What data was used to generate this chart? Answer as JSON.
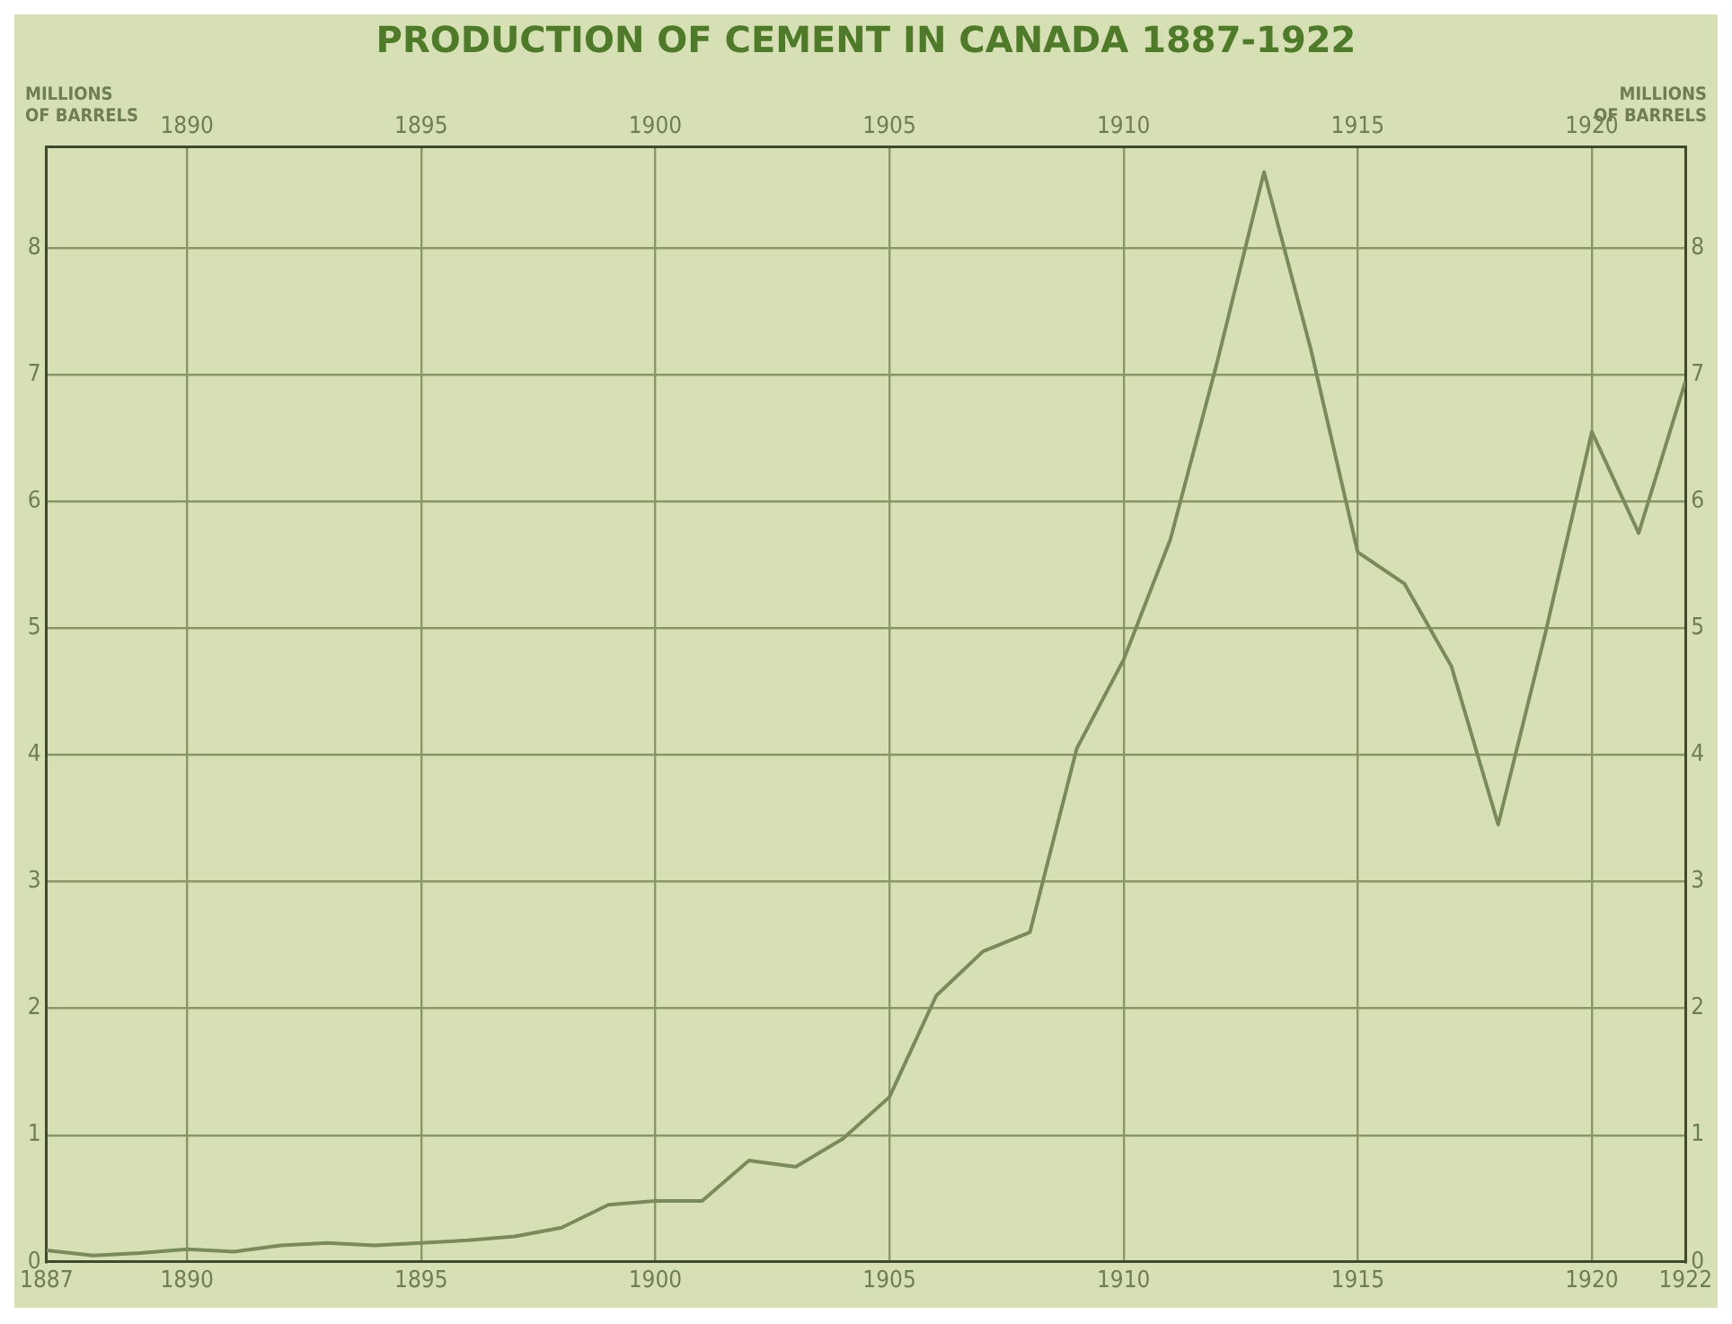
{
  "chart_data": {
    "type": "line",
    "title": "PRODUCTION OF CEMENT IN CANADA 1887-1922",
    "ylabel": "MILLIONS OF BARRELS",
    "y2label": "MILLIONS OF BARRELS",
    "x": [
      1887,
      1888,
      1889,
      1890,
      1891,
      1892,
      1893,
      1894,
      1895,
      1896,
      1897,
      1898,
      1899,
      1900,
      1901,
      1902,
      1903,
      1904,
      1905,
      1906,
      1907,
      1908,
      1909,
      1910,
      1911,
      1912,
      1913,
      1914,
      1915,
      1916,
      1917,
      1918,
      1919,
      1920,
      1921,
      1922
    ],
    "series": [
      {
        "color": "#7a8a5a",
        "values": [
          0.09,
          0.05,
          0.07,
          0.1,
          0.08,
          0.13,
          0.15,
          0.13,
          0.15,
          0.17,
          0.2,
          0.27,
          0.45,
          0.48,
          0.48,
          0.8,
          0.75,
          0.97,
          1.3,
          2.1,
          2.45,
          2.6,
          4.05,
          4.75,
          5.7,
          7.1,
          8.6,
          7.2,
          5.6,
          5.35,
          4.7,
          3.45,
          4.95,
          6.55,
          5.75,
          6.95
        ]
      }
    ],
    "xlim": [
      1887,
      1922
    ],
    "xticks": [
      1887,
      1890,
      1895,
      1900,
      1905,
      1910,
      1915,
      1920,
      1922
    ],
    "x2lim": [
      1887,
      1922
    ],
    "x2ticks": [
      1890,
      1895,
      1900,
      1905,
      1910,
      1915,
      1920
    ],
    "ylim": [
      0,
      8.8
    ],
    "yticks": [
      0,
      1,
      2,
      3,
      4,
      5,
      6,
      7,
      8
    ],
    "y2lim": [
      0,
      8.8
    ],
    "y2ticks": [
      0,
      1,
      2,
      3,
      4,
      5,
      6,
      7,
      8
    ],
    "grid": true,
    "legend": false,
    "marker": "none",
    "line_style": "solid"
  }
}
